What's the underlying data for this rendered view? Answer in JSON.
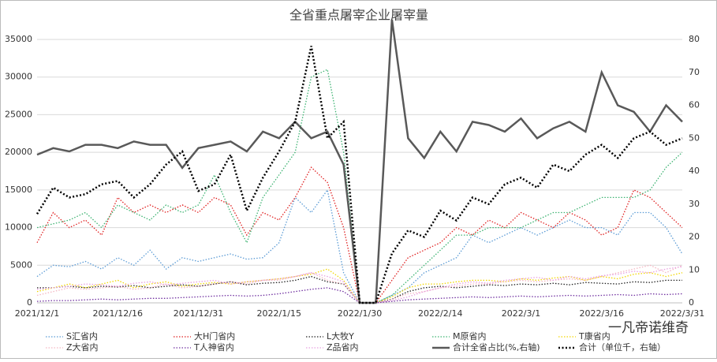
{
  "chart_data": {
    "type": "line",
    "title": "全省重点屠宰企业屠宰量",
    "categories": [
      "2021/12/1",
      null,
      null,
      null,
      null,
      "2021/12/16",
      null,
      null,
      null,
      null,
      "2021/12/31",
      null,
      null,
      null,
      null,
      "2022/1/15",
      null,
      null,
      null,
      null,
      "2022/1/30",
      null,
      null,
      null,
      null,
      "2022/2/14",
      null,
      null,
      null,
      null,
      "2022/3/1",
      null,
      null,
      null,
      null,
      "2022/3/16",
      null,
      null,
      null,
      null,
      "2022/3/31"
    ],
    "ylim": [
      0,
      35000
    ],
    "yticks": [
      0,
      5000,
      10000,
      15000,
      20000,
      25000,
      30000,
      35000
    ],
    "y2lim": [
      0,
      80
    ],
    "y2ticks": [
      0,
      10,
      20,
      30,
      40,
      50,
      60,
      70,
      80
    ],
    "grid": true,
    "legend": "bottom",
    "annotations": [
      "一凡帝诺维奇"
    ],
    "series": [
      {
        "name": "S汇省内",
        "color": "#5b9bd5",
        "style": "dotted",
        "values": [
          3500,
          5000,
          4800,
          5500,
          4500,
          6000,
          5000,
          7000,
          4500,
          6000,
          5500,
          6000,
          6500,
          5800,
          6000,
          8000,
          14000,
          12000,
          15000,
          4000,
          0,
          0,
          1000,
          2000,
          4000,
          5000,
          6000,
          9000,
          8000,
          9000,
          10000,
          9000,
          10000,
          11000,
          10000,
          10000,
          9000,
          12000,
          12000,
          10000,
          6500
        ]
      },
      {
        "name": "大H门省内",
        "color": "#e02020",
        "style": "dotted",
        "values": [
          8000,
          12000,
          10000,
          11000,
          9000,
          14000,
          12000,
          13000,
          12000,
          13000,
          12000,
          14000,
          13000,
          9000,
          12000,
          11000,
          14000,
          18000,
          16000,
          10000,
          0,
          0,
          3000,
          6000,
          7000,
          8000,
          10000,
          9000,
          11000,
          10000,
          12000,
          11000,
          10000,
          12000,
          11000,
          9000,
          10000,
          15000,
          14000,
          12000,
          10000
        ]
      },
      {
        "name": "L大牧Y",
        "color": "#222222",
        "style": "dotted",
        "values": [
          2000,
          2000,
          2200,
          2000,
          2200,
          2100,
          2300,
          2000,
          2200,
          2400,
          2200,
          2500,
          2800,
          2400,
          2600,
          2700,
          3000,
          3500,
          2800,
          2500,
          0,
          0,
          500,
          1500,
          2000,
          2200,
          2000,
          2200,
          2400,
          2300,
          2500,
          2400,
          2600,
          2400,
          2700,
          2600,
          2500,
          2800,
          2700,
          3000,
          3000
        ]
      },
      {
        "name": "M原省内",
        "color": "#3cb371",
        "style": "dotted",
        "values": [
          10000,
          10500,
          11000,
          12000,
          10000,
          13000,
          12000,
          11000,
          13000,
          12000,
          13000,
          17000,
          12000,
          8000,
          14000,
          17000,
          20000,
          30000,
          31000,
          20000,
          0,
          0,
          1000,
          3000,
          5000,
          7000,
          9000,
          9000,
          10000,
          10000,
          10000,
          11000,
          12000,
          12000,
          13000,
          14000,
          14000,
          14000,
          15000,
          18000,
          20000
        ]
      },
      {
        "name": "T康省内",
        "color": "#f2d600",
        "style": "dotted",
        "values": [
          1500,
          2000,
          2500,
          2000,
          2500,
          3000,
          2000,
          2500,
          2800,
          2200,
          2500,
          2700,
          2500,
          2800,
          3000,
          3200,
          3500,
          3800,
          4500,
          3000,
          0,
          0,
          800,
          2000,
          2500,
          2500,
          2800,
          3000,
          3000,
          2800,
          3200,
          3000,
          3300,
          3500,
          3000,
          3500,
          3200,
          3800,
          4000,
          3500,
          4000
        ]
      },
      {
        "name": "Z大省内",
        "color": "#f4b6c2",
        "style": "dotted",
        "values": [
          1000,
          1500,
          2000,
          1800,
          2000,
          2200,
          1800,
          2000,
          2500,
          2000,
          2200,
          2500,
          2800,
          2500,
          3000,
          3000,
          3500,
          4000,
          3000,
          2500,
          0,
          0,
          500,
          1200,
          1500,
          2000,
          2200,
          2500,
          2500,
          2800,
          3000,
          2800,
          3000,
          3200,
          3000,
          3500,
          4000,
          4500,
          5000,
          4000,
          5000
        ]
      },
      {
        "name": "T人神省内",
        "color": "#7030a0",
        "style": "dotted",
        "values": [
          200,
          300,
          300,
          400,
          500,
          400,
          500,
          600,
          600,
          700,
          800,
          900,
          1000,
          900,
          1000,
          1200,
          1500,
          1800,
          2000,
          1500,
          0,
          0,
          200,
          400,
          500,
          600,
          700,
          800,
          700,
          800,
          900,
          800,
          900,
          1000,
          900,
          1000,
          1100,
          1000,
          1200,
          1100,
          1200
        ]
      },
      {
        "name": "Z品省内",
        "color": "#e8a0e0",
        "style": "dotted",
        "values": [
          1800,
          2000,
          2200,
          2500,
          2400,
          2200,
          2600,
          2800,
          2400,
          2600,
          2800,
          3000,
          2500,
          2800,
          3000,
          3200,
          3500,
          4000,
          3500,
          2800,
          0,
          0,
          300,
          800,
          1500,
          2000,
          2500,
          2800,
          2600,
          3000,
          3200,
          3400,
          3000,
          3500,
          3200,
          3600,
          3800,
          4200,
          4000,
          4500,
          4800
        ]
      },
      {
        "name": "合计全省占比(%,右轴)",
        "color": "#595959",
        "style": "solid",
        "axis": "y2",
        "values": [
          45,
          47,
          46,
          48,
          48,
          47,
          49,
          48,
          48,
          41,
          47,
          48,
          49,
          46,
          52,
          50,
          55,
          50,
          52,
          42,
          0,
          0,
          86,
          50,
          44,
          52,
          46,
          55,
          54,
          52,
          56,
          50,
          53,
          55,
          52,
          70,
          60,
          58,
          52,
          60,
          55
        ]
      },
      {
        "name": "合计（单位千，右轴）",
        "color": "#000000",
        "style": "dotted-bold",
        "axis": "y2",
        "values": [
          27,
          35,
          32,
          33,
          36,
          37,
          32,
          36,
          42,
          46,
          34,
          36,
          45,
          28,
          38,
          46,
          55,
          78,
          50,
          55,
          0,
          0,
          15,
          22,
          20,
          28,
          25,
          32,
          30,
          36,
          38,
          35,
          42,
          40,
          45,
          48,
          44,
          50,
          52,
          48,
          50
        ]
      }
    ]
  }
}
